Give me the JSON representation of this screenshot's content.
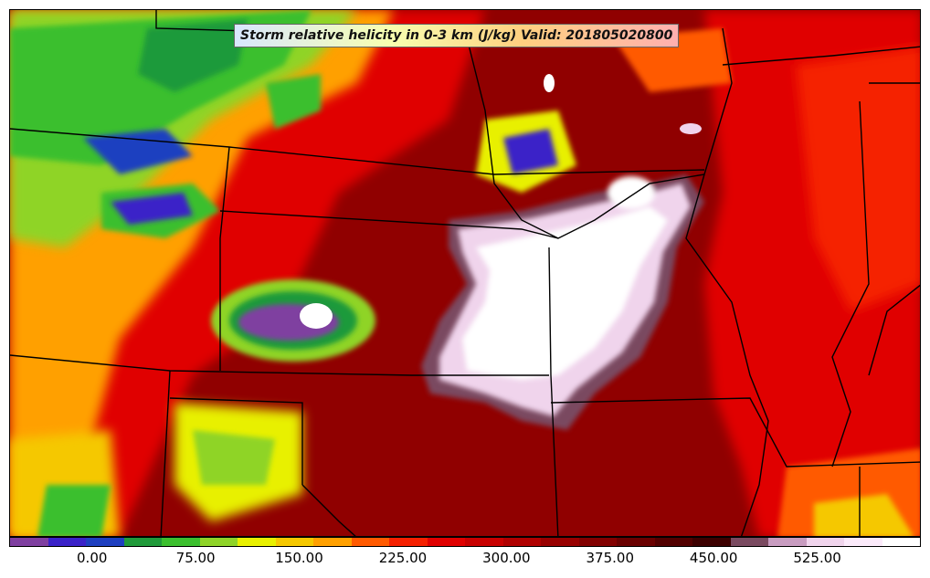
{
  "title": "Storm relative helicity in 0-3 km (J/kg) Valid: 201805020800",
  "colorbar": {
    "colors": [
      "#7f3fa0",
      "#3a22c8",
      "#1e3fc0",
      "#1f9a3a",
      "#3bbf2e",
      "#8fd428",
      "#e8f000",
      "#f5c800",
      "#ffa000",
      "#ff5a00",
      "#f52000",
      "#e00000",
      "#c80000",
      "#b00000",
      "#980000",
      "#820000",
      "#6a0000",
      "#520000",
      "#3c0000",
      "#7a4a60",
      "#c89cc0",
      "#f0d4ec",
      "#fbeafa",
      "#ffffff"
    ],
    "ticks": [
      "0.00",
      "75.00",
      "150.00",
      "225.00",
      "300.00",
      "375.00",
      "450.00",
      "525.00"
    ],
    "tick_values": [
      0,
      75,
      150,
      225,
      300,
      375,
      450,
      525
    ],
    "vmin": -60,
    "vmax": 600
  }
}
